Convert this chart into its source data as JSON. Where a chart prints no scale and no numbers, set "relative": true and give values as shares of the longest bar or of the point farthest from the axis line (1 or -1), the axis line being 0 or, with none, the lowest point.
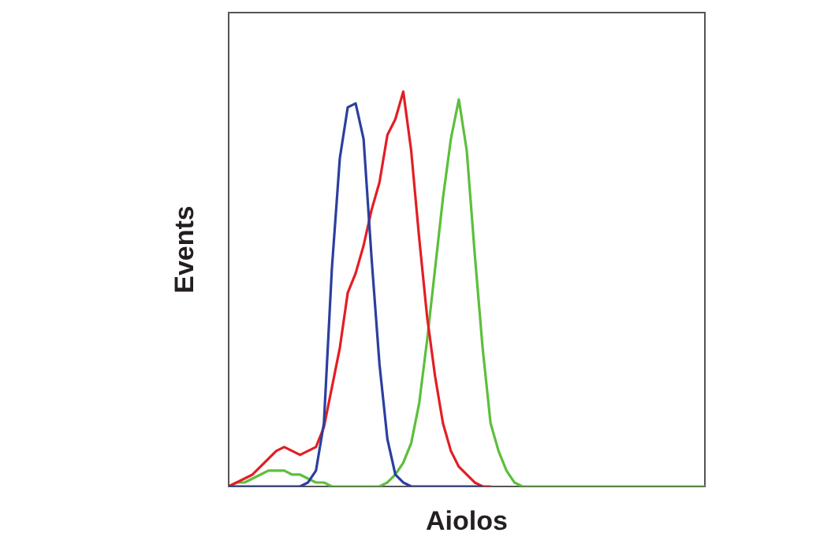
{
  "chart_data": {
    "type": "line",
    "relative": true,
    "xlabel": "Aiolos",
    "ylabel": "Events",
    "tick_labels": false,
    "marker": "none",
    "line_style": "solid",
    "grid": false,
    "legend": false,
    "categories": [
      null,
      null,
      null,
      null,
      null,
      null,
      null,
      null,
      null,
      null,
      null,
      null,
      null,
      null,
      null,
      null,
      null,
      null,
      null,
      null,
      null,
      null,
      null,
      null,
      null,
      null,
      null,
      null,
      null,
      null,
      null,
      null,
      null,
      null,
      null,
      null,
      null,
      null,
      null,
      null,
      null,
      null,
      null,
      null,
      null,
      null,
      null,
      null,
      null,
      null,
      null,
      null,
      null,
      null,
      null,
      null,
      null,
      null,
      null,
      null,
      null
    ],
    "series": [
      {
        "color": "#2b3fa0",
        "values": [
          0,
          0,
          0,
          0,
          0,
          0,
          0,
          0,
          0,
          0,
          0.01,
          0.04,
          0.16,
          0.55,
          0.83,
          0.96,
          0.97,
          0.88,
          0.58,
          0.31,
          0.12,
          0.03,
          0.01,
          0,
          0,
          0,
          0,
          0,
          0,
          0,
          0,
          0,
          0,
          null,
          null,
          null,
          null,
          null,
          null,
          null,
          null,
          null,
          null,
          null,
          null,
          null,
          null,
          null,
          null,
          null,
          null,
          null,
          null,
          null,
          null,
          null,
          null,
          null,
          null,
          null,
          null
        ]
      },
      {
        "color": "#e31e24",
        "values": [
          0,
          0.01,
          0.02,
          0.03,
          0.05,
          0.07,
          0.09,
          0.1,
          0.09,
          0.08,
          0.09,
          0.1,
          0.15,
          0.25,
          0.35,
          0.49,
          0.54,
          0.61,
          0.7,
          0.77,
          0.89,
          0.93,
          1,
          0.85,
          0.63,
          0.43,
          0.28,
          0.16,
          0.09,
          0.05,
          0.03,
          0.01,
          0,
          0,
          null,
          null,
          null,
          null,
          null,
          null,
          null,
          null,
          null,
          null,
          null,
          null,
          null,
          null,
          null,
          null,
          null,
          null,
          null,
          null,
          null,
          null,
          null,
          null,
          null,
          null,
          null
        ]
      },
      {
        "color": "#5cbf3b",
        "values": [
          0,
          0.01,
          0.01,
          0.02,
          0.03,
          0.04,
          0.04,
          0.04,
          0.03,
          0.03,
          0.02,
          0.01,
          0.01,
          0,
          0,
          0,
          0,
          0,
          0,
          0,
          0.01,
          0.03,
          0.06,
          0.11,
          0.21,
          0.37,
          0.55,
          0.73,
          0.88,
          0.98,
          0.85,
          0.59,
          0.35,
          0.16,
          0.09,
          0.04,
          0.01,
          0,
          0,
          0,
          0,
          0,
          0,
          0,
          0,
          0,
          0,
          0,
          0,
          0,
          0,
          0,
          0,
          0,
          0,
          0,
          0,
          0,
          0,
          0,
          0
        ]
      }
    ]
  }
}
